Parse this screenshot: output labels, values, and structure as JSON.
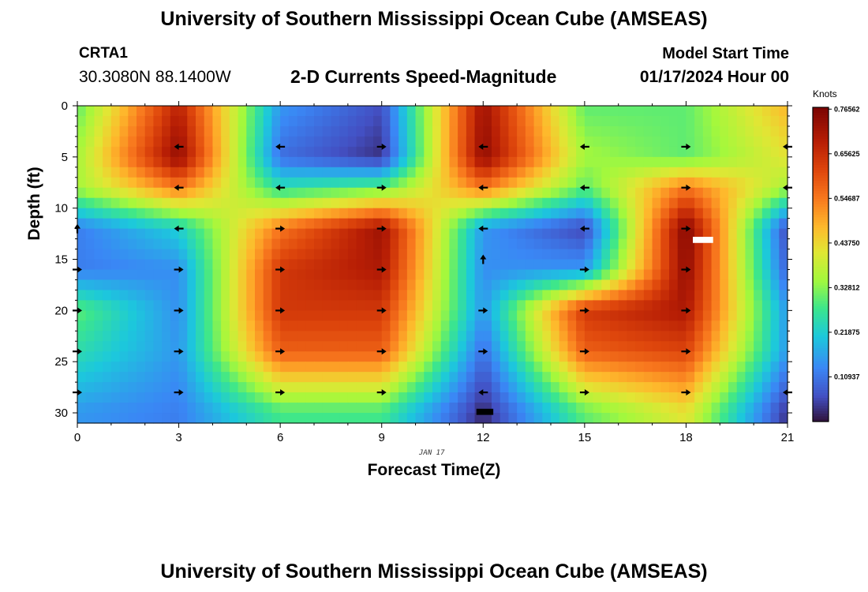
{
  "header": {
    "title": "University of Southern Mississippi Ocean Cube (AMSEAS)",
    "station": "CRTA1",
    "coords": "30.3080N  88.1400W",
    "subtitle": "2-D Currents Speed-Magnitude",
    "model_start_label": "Model Start Time",
    "model_start_value": "01/17/2024 Hour 00"
  },
  "footer": {
    "title": "University of Southern Mississippi Ocean Cube (AMSEAS)"
  },
  "colors": {
    "arrow": "#000000",
    "marker_white": "#ffffff",
    "marker_black": "#000000"
  },
  "chart_data": {
    "type": "heatmap",
    "title": "2-D Currents Speed-Magnitude",
    "xlabel": "Forecast Time(Z)",
    "ylabel": "Depth (ft)",
    "date_annotation": "JAN 17",
    "xlim": [
      0,
      21
    ],
    "ylim": [
      0,
      31
    ],
    "x_ticks": [
      0,
      3,
      6,
      9,
      12,
      15,
      18,
      21
    ],
    "y_ticks": [
      0,
      5,
      10,
      15,
      20,
      25,
      30
    ],
    "colorbar": {
      "label": "Knots",
      "min": 0,
      "max": 0.77,
      "ticks": [
        "0.76562",
        "0.65625",
        "0.54687",
        "0.43750",
        "0.32812",
        "0.21875",
        "0.10937"
      ],
      "tick_values": [
        0.76562,
        0.65625,
        0.54687,
        0.4375,
        0.32812,
        0.21875,
        0.10937
      ]
    },
    "speed_field_nodes": {
      "times": [
        0,
        3,
        6,
        9,
        12,
        15,
        18,
        21
      ],
      "depths": [
        0,
        5,
        8,
        12,
        16,
        20,
        24,
        30
      ],
      "values": [
        [
          0.3,
          0.68,
          0.15,
          0.06,
          0.72,
          0.3,
          0.3,
          0.48
        ],
        [
          0.35,
          0.74,
          0.1,
          0.03,
          0.74,
          0.35,
          0.3,
          0.42
        ],
        [
          0.35,
          0.55,
          0.25,
          0.3,
          0.55,
          0.3,
          0.55,
          0.35
        ],
        [
          0.12,
          0.22,
          0.55,
          0.72,
          0.15,
          0.05,
          0.76,
          0.05
        ],
        [
          0.12,
          0.14,
          0.64,
          0.7,
          0.14,
          0.15,
          0.74,
          0.08
        ],
        [
          0.3,
          0.14,
          0.64,
          0.64,
          0.15,
          0.64,
          0.7,
          0.15
        ],
        [
          0.25,
          0.15,
          0.58,
          0.58,
          0.1,
          0.58,
          0.62,
          0.15
        ],
        [
          0.15,
          0.12,
          0.28,
          0.28,
          0.02,
          0.3,
          0.42,
          0.03
        ]
      ]
    },
    "current_vectors": [
      {
        "t": 3,
        "d": 4,
        "dir": "left"
      },
      {
        "t": 6,
        "d": 4,
        "dir": "left"
      },
      {
        "t": 9,
        "d": 4,
        "dir": "right"
      },
      {
        "t": 12,
        "d": 4,
        "dir": "left"
      },
      {
        "t": 15,
        "d": 4,
        "dir": "left"
      },
      {
        "t": 18,
        "d": 4,
        "dir": "right"
      },
      {
        "t": 21,
        "d": 4,
        "dir": "left"
      },
      {
        "t": 3,
        "d": 8,
        "dir": "left"
      },
      {
        "t": 6,
        "d": 8,
        "dir": "left"
      },
      {
        "t": 9,
        "d": 8,
        "dir": "right"
      },
      {
        "t": 12,
        "d": 8,
        "dir": "left"
      },
      {
        "t": 15,
        "d": 8,
        "dir": "left"
      },
      {
        "t": 18,
        "d": 8,
        "dir": "right"
      },
      {
        "t": 21,
        "d": 8,
        "dir": "left"
      },
      {
        "t": 0,
        "d": 12,
        "dir": "up"
      },
      {
        "t": 3,
        "d": 12,
        "dir": "left"
      },
      {
        "t": 6,
        "d": 12,
        "dir": "right"
      },
      {
        "t": 9,
        "d": 12,
        "dir": "right"
      },
      {
        "t": 12,
        "d": 12,
        "dir": "left"
      },
      {
        "t": 15,
        "d": 12,
        "dir": "left"
      },
      {
        "t": 18,
        "d": 12,
        "dir": "right"
      },
      {
        "t": 0,
        "d": 16,
        "dir": "right"
      },
      {
        "t": 3,
        "d": 16,
        "dir": "right"
      },
      {
        "t": 6,
        "d": 16,
        "dir": "right"
      },
      {
        "t": 9,
        "d": 16,
        "dir": "right"
      },
      {
        "t": 12,
        "d": 15,
        "dir": "up"
      },
      {
        "t": 15,
        "d": 16,
        "dir": "right"
      },
      {
        "t": 18,
        "d": 16,
        "dir": "right"
      },
      {
        "t": 0,
        "d": 20,
        "dir": "right"
      },
      {
        "t": 3,
        "d": 20,
        "dir": "right"
      },
      {
        "t": 6,
        "d": 20,
        "dir": "right"
      },
      {
        "t": 9,
        "d": 20,
        "dir": "right"
      },
      {
        "t": 12,
        "d": 20,
        "dir": "right"
      },
      {
        "t": 15,
        "d": 20,
        "dir": "right"
      },
      {
        "t": 18,
        "d": 20,
        "dir": "right"
      },
      {
        "t": 0,
        "d": 24,
        "dir": "right"
      },
      {
        "t": 3,
        "d": 24,
        "dir": "right"
      },
      {
        "t": 6,
        "d": 24,
        "dir": "right"
      },
      {
        "t": 9,
        "d": 24,
        "dir": "right"
      },
      {
        "t": 12,
        "d": 24,
        "dir": "right"
      },
      {
        "t": 15,
        "d": 24,
        "dir": "right"
      },
      {
        "t": 18,
        "d": 24,
        "dir": "right"
      },
      {
        "t": 0,
        "d": 28,
        "dir": "right"
      },
      {
        "t": 3,
        "d": 28,
        "dir": "right"
      },
      {
        "t": 6,
        "d": 28,
        "dir": "right"
      },
      {
        "t": 9,
        "d": 28,
        "dir": "right"
      },
      {
        "t": 12,
        "d": 28,
        "dir": "left"
      },
      {
        "t": 15,
        "d": 28,
        "dir": "right"
      },
      {
        "t": 18,
        "d": 28,
        "dir": "right"
      },
      {
        "t": 21,
        "d": 28,
        "dir": "left"
      }
    ],
    "missing_cells": [
      {
        "t0": 18.2,
        "t1": 18.8,
        "d0": 12.8,
        "d1": 13.4,
        "color": "white"
      },
      {
        "t0": 11.8,
        "t1": 12.3,
        "d0": 29.6,
        "d1": 30.2,
        "color": "black"
      }
    ]
  }
}
